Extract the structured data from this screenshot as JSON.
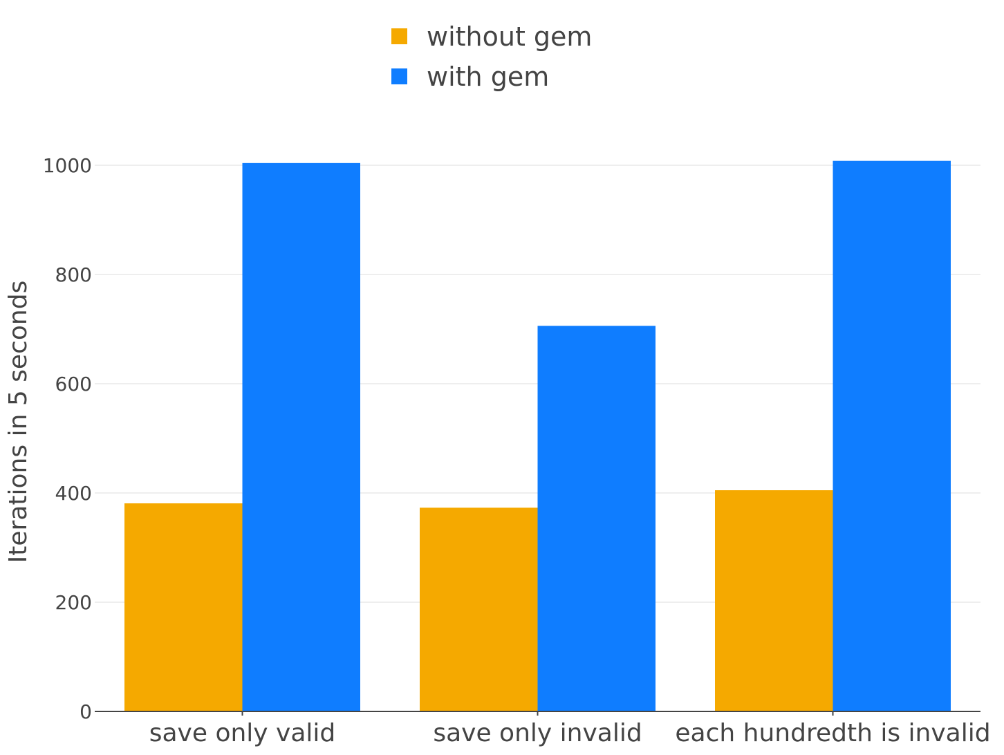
{
  "chart_data": {
    "type": "bar",
    "categories": [
      "save only valid",
      "save only invalid",
      "each hundredth is invalid"
    ],
    "series": [
      {
        "name": "without gem",
        "color": "#f5a900",
        "values": [
          381,
          373,
          405
        ]
      },
      {
        "name": "with gem",
        "color": "#0f7dff",
        "values": [
          1004,
          706,
          1008
        ]
      }
    ],
    "title": "",
    "xlabel": "",
    "ylabel": "Iterations in 5 seconds",
    "ylim": [
      0,
      1000
    ],
    "yticks": [
      0,
      200,
      400,
      600,
      800,
      1000
    ],
    "grid": true,
    "legend_position": "top-center"
  }
}
